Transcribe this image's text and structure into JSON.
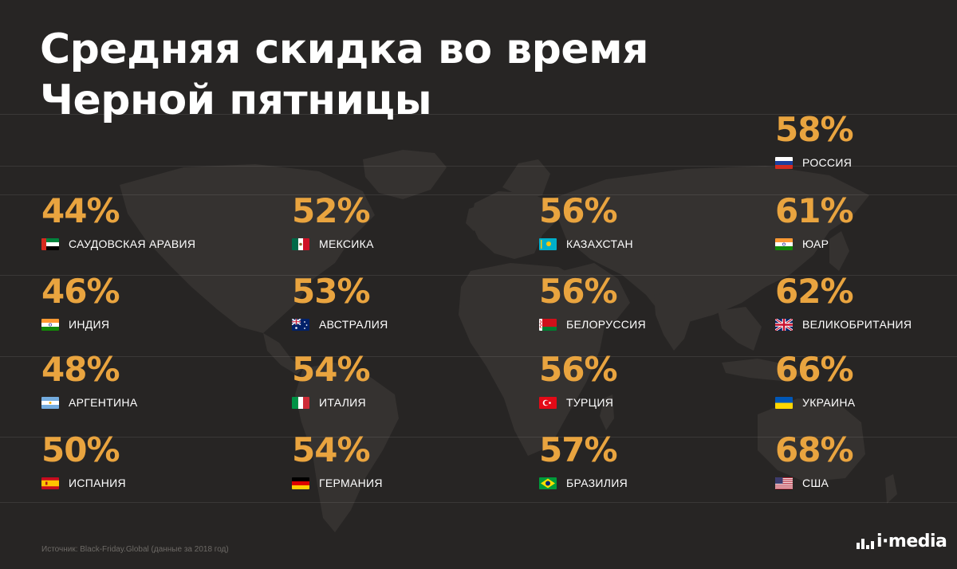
{
  "title": {
    "line1": "Средняя скидка во время",
    "line2": "Черной пятницы"
  },
  "colors": {
    "background": "#272524",
    "accent": "#e9a43f",
    "text": "#ffffff",
    "source": "#6d6a66"
  },
  "stats": [
    {
      "value": "58%",
      "country": "РОССИЯ",
      "flag": "russia-flag-icon"
    },
    {
      "value": "44%",
      "country": "САУДОВСКАЯ АРАВИЯ",
      "flag": "uae-flag-icon"
    },
    {
      "value": "52%",
      "country": "МЕКСИКА",
      "flag": "mexico-flag-icon"
    },
    {
      "value": "56%",
      "country": "КАЗАХСТАН",
      "flag": "kazakhstan-flag-icon"
    },
    {
      "value": "61%",
      "country": "ЮАР",
      "flag": "india-flag-icon"
    },
    {
      "value": "46%",
      "country": "ИНДИЯ",
      "flag": "india-flag-icon"
    },
    {
      "value": "53%",
      "country": "АВСТРАЛИЯ",
      "flag": "australia-flag-icon"
    },
    {
      "value": "56%",
      "country": "БЕЛОРУССИЯ",
      "flag": "belarus-flag-icon"
    },
    {
      "value": "62%",
      "country": "ВЕЛИКОБРИТАНИЯ",
      "flag": "uk-flag-icon"
    },
    {
      "value": "48%",
      "country": "АРГЕНТИНА",
      "flag": "argentina-flag-icon"
    },
    {
      "value": "54%",
      "country": "ИТАЛИЯ",
      "flag": "italy-flag-icon"
    },
    {
      "value": "56%",
      "country": "ТУРЦИЯ",
      "flag": "turkey-flag-icon"
    },
    {
      "value": "66%",
      "country": "УКРАИНА",
      "flag": "ukraine-flag-icon"
    },
    {
      "value": "50%",
      "country": "ИСПАНИЯ",
      "flag": "spain-flag-icon"
    },
    {
      "value": "54%",
      "country": "ГЕРМАНИЯ",
      "flag": "germany-flag-icon"
    },
    {
      "value": "57%",
      "country": "БРАЗИЛИЯ",
      "flag": "brazil-flag-icon"
    },
    {
      "value": "68%",
      "country": "США",
      "flag": "usa-flag-icon"
    }
  ],
  "source": "Источник: Black-Friday.Global (данные за 2018 год)",
  "logo": {
    "text": "i·media",
    "icon": "imedia-logo-icon"
  }
}
